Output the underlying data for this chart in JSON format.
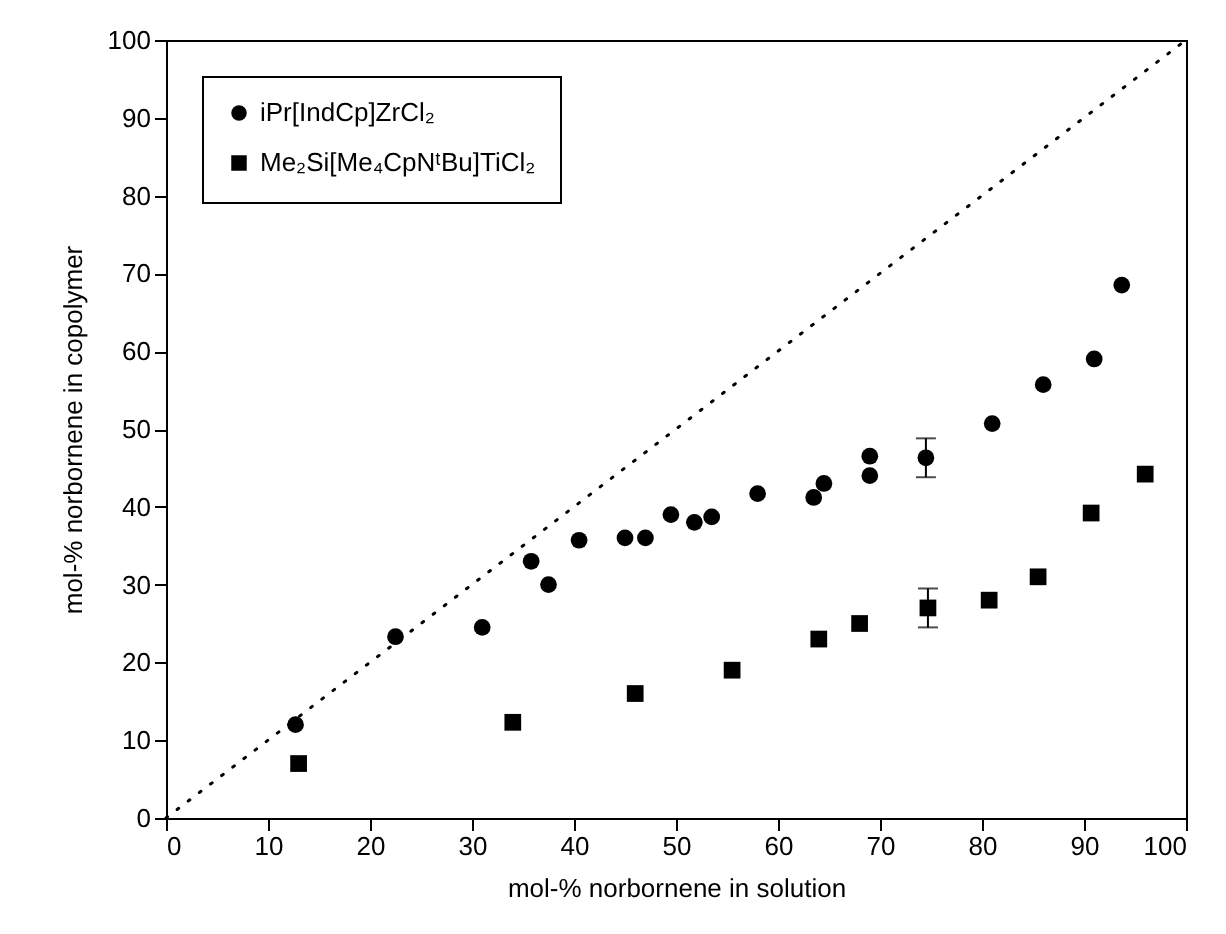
{
  "chart_data": {
    "type": "scatter",
    "xlabel": "mol-% norbornene in solution",
    "ylabel": "mol-% norbornene in copolymer",
    "xlim": [
      0,
      100
    ],
    "xticks": [
      0,
      10,
      20,
      30,
      40,
      50,
      60,
      70,
      80,
      90,
      100
    ],
    "ylim": [
      0,
      100
    ],
    "yticks": [
      0,
      10,
      20,
      30,
      40,
      50,
      60,
      70,
      80,
      90,
      100
    ],
    "grid": false,
    "legend": "top left",
    "series": [
      {
        "name": "iPr[IndCp]ZrCl₂",
        "color": "#000000",
        "marker": "circle",
        "x": [
          12.7,
          22.5,
          31,
          35.8,
          37.5,
          40.5,
          45,
          47,
          49.5,
          51.8,
          53.5,
          58,
          63.5,
          64.5,
          69,
          69,
          74.5,
          81,
          86,
          91,
          93.7
        ],
        "values": [
          12,
          23.3,
          24.5,
          33,
          30,
          35.7,
          36,
          36,
          39,
          38,
          38.7,
          41.7,
          41.2,
          43,
          44,
          46.5,
          46.3,
          50.7,
          55.7,
          59,
          68.5
        ],
        "errors": [
          null,
          null,
          null,
          null,
          null,
          null,
          null,
          null,
          null,
          null,
          null,
          null,
          null,
          null,
          null,
          null,
          2.5,
          null,
          null,
          null,
          null
        ]
      },
      {
        "name": "Me₂Si[Me₄CpNᵗBu]TiCl₂",
        "color": "#000000",
        "marker": "square",
        "x": [
          13,
          34,
          46,
          55.5,
          64,
          68,
          74.7,
          80.7,
          85.5,
          90.7,
          96
        ],
        "values": [
          7,
          12.3,
          16,
          19,
          23,
          25,
          27,
          28,
          31,
          39.2,
          44.2
        ],
        "errors": [
          null,
          null,
          null,
          null,
          null,
          null,
          2.5,
          null,
          null,
          null,
          null
        ]
      },
      {
        "type": "line",
        "color": "#000000",
        "line_style": "dotted",
        "x": [
          0,
          100
        ],
        "values": [
          0,
          100
        ]
      }
    ]
  }
}
